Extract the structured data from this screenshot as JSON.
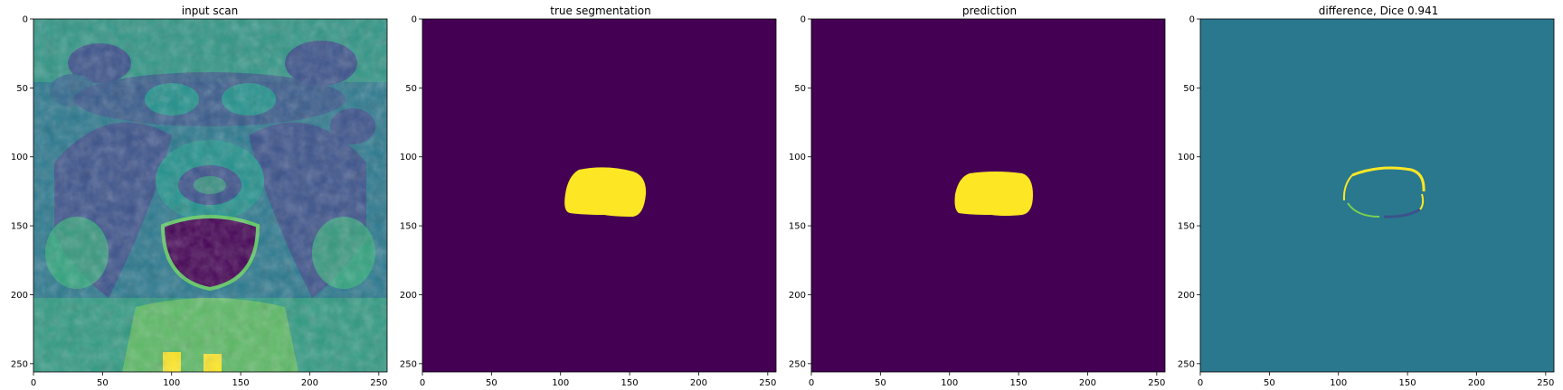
{
  "panels": [
    {
      "title": "input scan",
      "kind": "mri"
    },
    {
      "title": "true segmentation",
      "kind": "mask-true"
    },
    {
      "title": "prediction",
      "kind": "mask-pred"
    },
    {
      "title": "difference, Dice 0.941",
      "kind": "difference"
    }
  ],
  "axes": {
    "x_ticks": [
      "0",
      "50",
      "100",
      "150",
      "200",
      "250"
    ],
    "y_ticks": [
      "0",
      "50",
      "100",
      "150",
      "200",
      "250"
    ],
    "range": [
      0,
      256
    ]
  },
  "colors": {
    "viridis_dark": "#440154",
    "viridis_blue": "#3b528b",
    "viridis_teal": "#2a788e",
    "viridis_green": "#22a884",
    "viridis_lime": "#7ad151",
    "viridis_yellow": "#fde725"
  }
}
